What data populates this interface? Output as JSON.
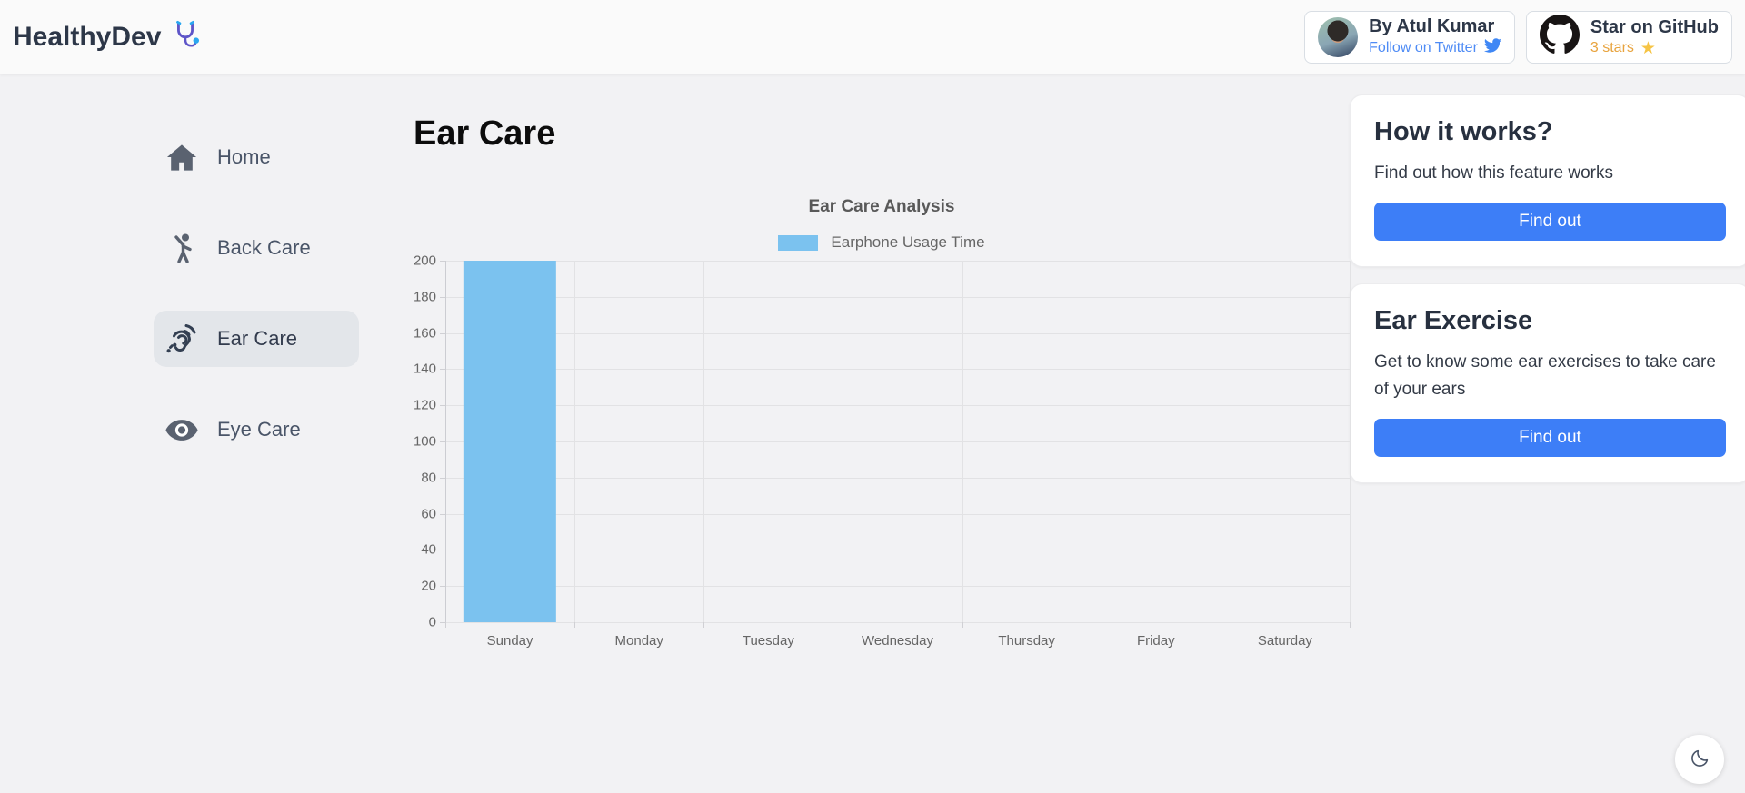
{
  "header": {
    "logo_text": "HealthyDev",
    "author_card": {
      "name": "By Atul Kumar",
      "link_label": "Follow on Twitter"
    },
    "github_card": {
      "label": "Star on GitHub",
      "stars_label": "3 stars",
      "star_glyph": "★"
    }
  },
  "sidebar": {
    "items": [
      {
        "label": "Home",
        "icon": "home-icon",
        "active": false
      },
      {
        "label": "Back Care",
        "icon": "back-care-icon",
        "active": false
      },
      {
        "label": "Ear Care",
        "icon": "ear-care-icon",
        "active": true
      },
      {
        "label": "Eye Care",
        "icon": "eye-care-icon",
        "active": false
      }
    ]
  },
  "main": {
    "page_title": "Ear Care"
  },
  "chart_data": {
    "type": "bar",
    "title": "Ear Care Analysis",
    "legend_position": "top",
    "categories": [
      "Sunday",
      "Monday",
      "Tuesday",
      "Wednesday",
      "Thursday",
      "Friday",
      "Saturday"
    ],
    "series": [
      {
        "name": "Earphone Usage Time",
        "values": [
          200,
          0,
          0,
          0,
          0,
          0,
          0
        ]
      }
    ],
    "xlabel": "",
    "ylabel": "",
    "ylim": [
      0,
      200
    ],
    "ytick_step": 20,
    "grid": true,
    "bar_color": "#7bc2ef"
  },
  "info_cards": [
    {
      "title": "How it works?",
      "body": "Find out how this feature works",
      "button_label": "Find out"
    },
    {
      "title": "Ear Exercise",
      "body": "Get to know some ear exercises to take care of your ears",
      "button_label": "Find out"
    }
  ],
  "dark_mode_toggle": {
    "icon": "moon-icon"
  },
  "colors": {
    "accent_blue": "#3d7ef7",
    "bar_blue": "#7bc2ef",
    "twitter_blue": "#4e8bf5",
    "stars_orange": "#e8a33d",
    "star_gold": "#f6c445"
  }
}
